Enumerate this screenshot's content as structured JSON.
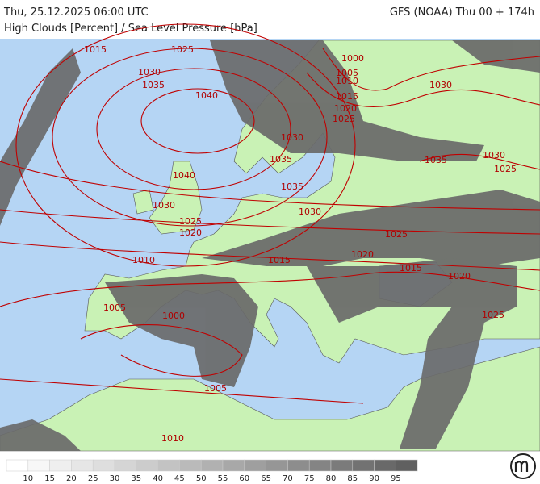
{
  "header": {
    "datetime": "Thu, 25.12.2025 06:00 UTC",
    "model": "GFS (NOAA) Thu 00 + 174h",
    "title": "High Clouds [Percent] / Sea Level Pressure [hPa]"
  },
  "pressure_labels": [
    1015,
    1025,
    1030,
    1035,
    1040,
    1000,
    1005,
    1010,
    1015,
    1020,
    1025,
    1030,
    1030,
    1035,
    1035,
    1030,
    1025,
    1040,
    1035,
    1030,
    1030,
    1025,
    1020,
    1025,
    1010,
    1015,
    1020,
    1015,
    1020,
    1005,
    1000,
    1025,
    1005,
    1010
  ],
  "legend": {
    "ticks": [
      10,
      15,
      20,
      25,
      30,
      35,
      40,
      45,
      50,
      55,
      60,
      65,
      70,
      75,
      80,
      85,
      90,
      95
    ],
    "colors": [
      "#ffffff",
      "#f7f7f7",
      "#efefef",
      "#e6e6e6",
      "#dedede",
      "#d5d5d5",
      "#cccccc",
      "#c3c3c3",
      "#bababa",
      "#b1b1b1",
      "#a8a8a8",
      "#9f9f9f",
      "#969696",
      "#8d8d8d",
      "#848484",
      "#7b7b7b",
      "#727272",
      "#696969",
      "#606060"
    ]
  }
}
